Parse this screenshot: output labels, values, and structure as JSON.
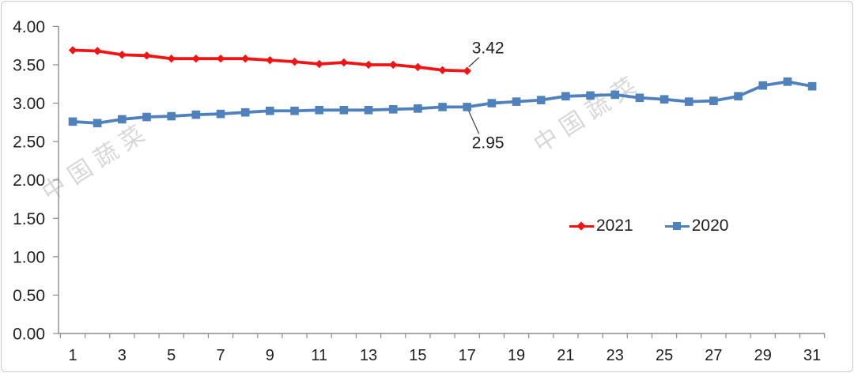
{
  "chart_data": {
    "type": "line",
    "title": "",
    "xlabel": "",
    "ylabel": "",
    "x": [
      1,
      2,
      3,
      4,
      5,
      6,
      7,
      8,
      9,
      10,
      11,
      12,
      13,
      14,
      15,
      16,
      17,
      18,
      19,
      20,
      21,
      22,
      23,
      24,
      25,
      26,
      27,
      28,
      29,
      30,
      31
    ],
    "x_tick_labels": [
      "1",
      "3",
      "5",
      "7",
      "9",
      "11",
      "13",
      "15",
      "17",
      "19",
      "21",
      "23",
      "25",
      "27",
      "29",
      "31"
    ],
    "y_ticks": [
      "0.00",
      "0.50",
      "1.00",
      "1.50",
      "2.00",
      "2.50",
      "3.00",
      "3.50",
      "4.00"
    ],
    "ylim": [
      0,
      4
    ],
    "grid": false,
    "legend_position": "center-right",
    "series": [
      {
        "name": "2021",
        "color": "#f01414",
        "marker": "diamond",
        "values": [
          3.69,
          3.68,
          3.63,
          3.62,
          3.58,
          3.58,
          3.58,
          3.58,
          3.56,
          3.54,
          3.51,
          3.53,
          3.5,
          3.5,
          3.47,
          3.43,
          3.42
        ]
      },
      {
        "name": "2020",
        "color": "#4f81bd",
        "marker": "square",
        "values": [
          2.76,
          2.74,
          2.79,
          2.82,
          2.83,
          2.85,
          2.86,
          2.88,
          2.9,
          2.9,
          2.91,
          2.91,
          2.91,
          2.92,
          2.93,
          2.95,
          2.95,
          3.0,
          3.02,
          3.04,
          3.09,
          3.1,
          3.11,
          3.07,
          3.05,
          3.02,
          3.03,
          3.09,
          3.23,
          3.28,
          3.22
        ]
      }
    ],
    "annotations": [
      {
        "series": "2021",
        "x": 17,
        "text": "3.42"
      },
      {
        "series": "2020",
        "x": 17,
        "text": "2.95"
      }
    ]
  },
  "legend": {
    "items": [
      {
        "label": "2021",
        "color": "#f01414",
        "marker": "diamond"
      },
      {
        "label": "2020",
        "color": "#4f81bd",
        "marker": "square"
      }
    ]
  },
  "watermark": {
    "text": "中国蔬菜",
    "color": "#bfbfbf"
  },
  "colors": {
    "axis": "#8c8c8c",
    "text": "#1f1f1f",
    "annotation_line": "#404040",
    "frame": "#c9c9c9",
    "background": "#ffffff"
  }
}
